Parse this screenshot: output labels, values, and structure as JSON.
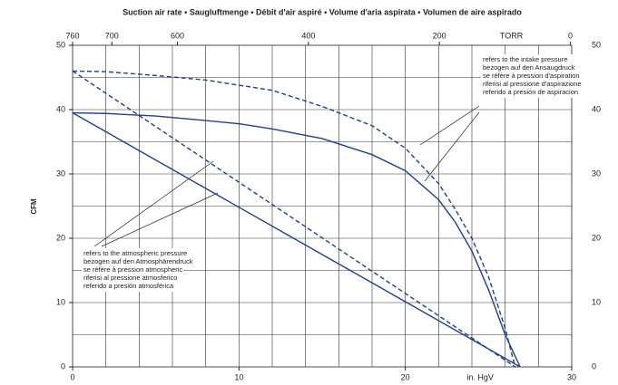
{
  "chart_data": {
    "type": "line",
    "title": "Suction air rate • Saugluftmenge • Débit d'air aspiré • Volume d'aria aspirata • Volumen de aire aspirado",
    "ylabel": "CFM",
    "xlabel": "in. HgV",
    "x2label": "TORR",
    "xlim": [
      0,
      30
    ],
    "xticks": [
      0,
      10,
      20,
      30
    ],
    "xgrid": [
      2,
      4,
      6,
      8,
      10,
      12,
      14,
      16,
      18,
      20,
      22,
      24,
      26,
      28
    ],
    "x2lim": [
      760,
      -2
    ],
    "x2ticks": [
      760,
      700,
      600,
      400,
      200,
      0
    ],
    "ylim": [
      0,
      50
    ],
    "yticks": [
      0,
      10,
      20,
      30,
      40,
      50
    ],
    "ygrid": [
      5,
      10,
      15,
      20,
      25,
      30,
      35,
      40,
      45
    ],
    "series": [
      {
        "color": "#1f3f8f",
        "dashed": true,
        "x": [
          0,
          2,
          5,
          8,
          10,
          12,
          15,
          18,
          20,
          22,
          23,
          24,
          25,
          26,
          26.6
        ],
        "values": [
          46,
          45.9,
          45.3,
          44.6,
          43.8,
          43,
          40.5,
          37.5,
          34,
          28.5,
          24.5,
          20,
          14,
          6,
          0
        ]
      },
      {
        "color": "#1f3f8f",
        "dashed": false,
        "x": [
          0,
          2,
          5,
          8,
          10,
          12,
          15,
          18,
          20,
          22,
          23,
          24,
          25,
          26,
          26.9
        ],
        "values": [
          39.5,
          39.4,
          39,
          38.3,
          37.8,
          37,
          35.5,
          33,
          30.5,
          26,
          22.5,
          18,
          12,
          5,
          0
        ]
      },
      {
        "color": "#1f3f8f",
        "dashed": true,
        "x": [
          0,
          26.6
        ],
        "values": [
          46,
          0
        ]
      },
      {
        "color": "#1f3f8f",
        "dashed": false,
        "x": [
          0,
          26.9
        ],
        "values": [
          39.5,
          0
        ]
      }
    ],
    "annotations": [
      [
        "refers to the intake pressure",
        "bezogen auf den Ansaugdruck",
        "se réfère à pression d'aspiration",
        "riferisi al pressione d'aspirazione",
        "referido a presión de aspiracion"
      ],
      [
        "refers to the atmospheric pressure",
        "bezogen auf den Atmosphärendruck",
        "se réfère à pression atmospheric",
        "riferisi al pressione atmosferico",
        "referido a presión atmosférica"
      ]
    ]
  }
}
